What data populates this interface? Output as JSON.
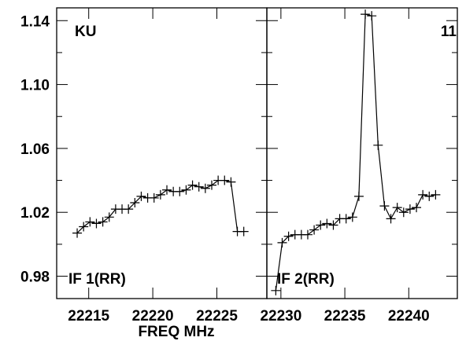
{
  "chart_data": {
    "type": "line",
    "xlabel": "FREQ MHz",
    "ylim": [
      0.966,
      1.148
    ],
    "yticks": [
      "0.98",
      "1.02",
      "1.06",
      "1.10",
      "1.14"
    ],
    "yticks_values": [
      0.98,
      1.02,
      1.06,
      1.1,
      1.14
    ],
    "grid": false,
    "source_label": "KU",
    "panel_number": "11",
    "panels": [
      {
        "name": "IF 1(RR)",
        "xlim": [
          22212.5,
          22228.9
        ],
        "xticks": [
          "22215",
          "22220",
          "22225"
        ],
        "xticks_values": [
          22215,
          22220,
          22225
        ],
        "x": [
          22214.1,
          22214.6,
          22215.1,
          22215.6,
          22216.1,
          22216.6,
          22217.1,
          22217.6,
          22218.1,
          22218.6,
          22219.1,
          22219.6,
          22220.1,
          22220.6,
          22221.1,
          22221.6,
          22222.1,
          22222.6,
          22223.1,
          22223.6,
          22224.1,
          22224.6,
          22225.1,
          22225.6,
          22226.1,
          22226.6,
          22227.1
        ],
        "y": [
          1.007,
          1.011,
          1.014,
          1.013,
          1.014,
          1.017,
          1.022,
          1.022,
          1.022,
          1.026,
          1.03,
          1.029,
          1.029,
          1.031,
          1.034,
          1.033,
          1.033,
          1.034,
          1.037,
          1.036,
          1.035,
          1.037,
          1.04,
          1.04,
          1.039,
          1.008,
          1.008
        ]
      },
      {
        "name": "IF 2(RR)",
        "xlim": [
          22228.9,
          22243.8
        ],
        "xticks": [
          "22230",
          "22235",
          "22240"
        ],
        "xticks_values": [
          22230,
          22235,
          22240
        ],
        "x": [
          22229.6,
          22230.1,
          22230.6,
          22231.1,
          22231.6,
          22232.1,
          22232.6,
          22233.1,
          22233.6,
          22234.1,
          22234.6,
          22235.1,
          22235.6,
          22236.1,
          22236.6,
          22237.1,
          22237.6,
          22238.1,
          22238.6,
          22239.1,
          22239.6,
          22240.1,
          22240.6,
          22241.1,
          22241.6,
          22242.1
        ],
        "y": [
          0.971,
          1.001,
          1.005,
          1.006,
          1.006,
          1.006,
          1.009,
          1.012,
          1.013,
          1.012,
          1.016,
          1.016,
          1.017,
          1.03,
          1.144,
          1.143,
          1.062,
          1.024,
          1.016,
          1.023,
          1.02,
          1.022,
          1.023,
          1.031,
          1.03,
          1.031
        ]
      }
    ]
  }
}
